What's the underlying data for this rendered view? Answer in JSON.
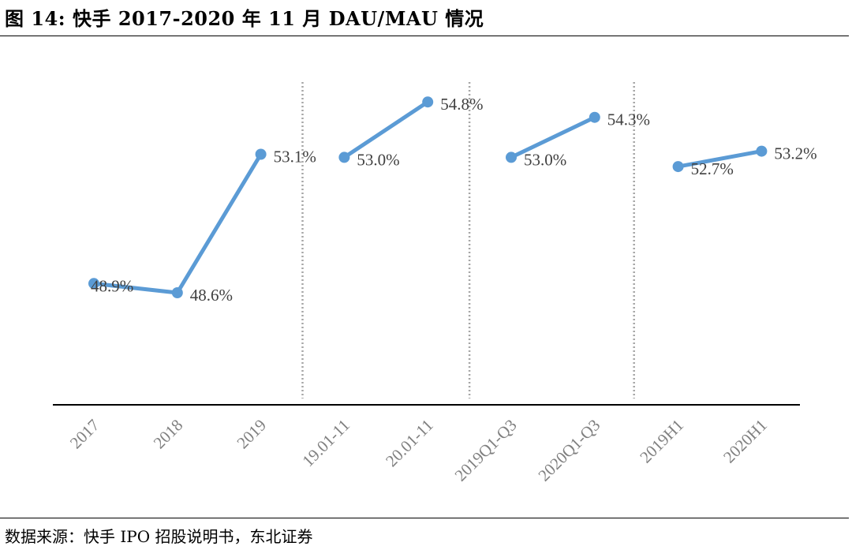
{
  "title": "图 14: 快手 2017-2020 年 11 月 DAU/MAU 情况",
  "source": "数据来源：快手 IPO 招股说明书，东北证券",
  "chart_data": {
    "type": "line",
    "categories": [
      "2017",
      "2018",
      "2019",
      "19.01-11",
      "20.01-11",
      "2019Q1-Q3",
      "2020Q1-Q3",
      "2019H1",
      "2020H1"
    ],
    "series": [
      {
        "x": [
          "2017",
          "2018",
          "2019"
        ],
        "values": [
          48.9,
          48.6,
          53.1
        ],
        "labels": [
          "48.9%",
          "48.6%",
          "53.1%"
        ]
      },
      {
        "x": [
          "19.01-11",
          "20.01-11"
        ],
        "values": [
          53.0,
          54.8
        ],
        "labels": [
          "53.0%",
          "54.8%"
        ]
      },
      {
        "x": [
          "2019Q1-Q3",
          "2020Q1-Q3"
        ],
        "values": [
          53.0,
          54.3
        ],
        "labels": [
          "53.0%",
          "54.3%"
        ]
      },
      {
        "x": [
          "2019H1",
          "2020H1"
        ],
        "values": [
          52.7,
          53.2
        ],
        "labels": [
          "52.7%",
          "53.2%"
        ]
      }
    ],
    "unit": "%",
    "color": "#5b9bd5",
    "separators": "dotted vertical lines between groups",
    "grid": false,
    "legend": "none"
  }
}
